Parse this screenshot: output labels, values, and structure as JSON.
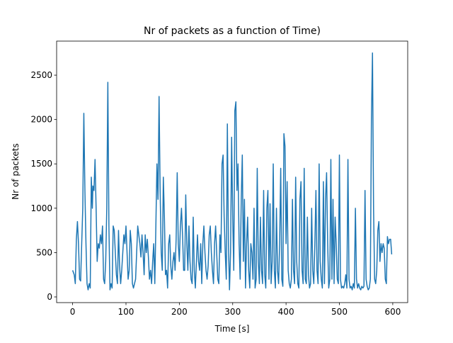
{
  "chart_data": {
    "type": "line",
    "title": "Nr of packets as a function of Time)",
    "x_label": "Time [s]",
    "y_label": "Nr of packets",
    "x": [
      0,
      3,
      5,
      7,
      9,
      11,
      13,
      15,
      17,
      19,
      21,
      23,
      25,
      27,
      29,
      31,
      33,
      35,
      37,
      38,
      40,
      42,
      44,
      46,
      48,
      50,
      52,
      54,
      56,
      58,
      60,
      62,
      64,
      66,
      68,
      70,
      72,
      74,
      76,
      78,
      80,
      82,
      84,
      86,
      88,
      90,
      92,
      94,
      96,
      98,
      100,
      102,
      104,
      106,
      108,
      110,
      112,
      114,
      116,
      118,
      120,
      122,
      124,
      126,
      128,
      130,
      132,
      134,
      136,
      138,
      140,
      142,
      144,
      146,
      148,
      150,
      152,
      154,
      156,
      158,
      160,
      162,
      164,
      166,
      168,
      170,
      172,
      174,
      176,
      178,
      180,
      182,
      184,
      186,
      188,
      190,
      192,
      194,
      196,
      198,
      200,
      202,
      204,
      206,
      208,
      210,
      212,
      214,
      216,
      218,
      220,
      222,
      224,
      226,
      228,
      230,
      232,
      234,
      236,
      238,
      240,
      242,
      244,
      246,
      248,
      250,
      252,
      254,
      256,
      258,
      260,
      262,
      264,
      266,
      268,
      270,
      272,
      274,
      276,
      278,
      280,
      282,
      284,
      286,
      288,
      290,
      292,
      294,
      296,
      298,
      300,
      302,
      304,
      306,
      308,
      310,
      312,
      314,
      316,
      318,
      320,
      322,
      324,
      326,
      328,
      330,
      332,
      334,
      336,
      338,
      340,
      342,
      344,
      346,
      348,
      350,
      352,
      354,
      356,
      358,
      360,
      362,
      364,
      366,
      368,
      370,
      372,
      374,
      376,
      378,
      380,
      382,
      384,
      386,
      388,
      390,
      392,
      394,
      396,
      398,
      400,
      402,
      404,
      406,
      408,
      410,
      412,
      414,
      416,
      418,
      420,
      422,
      424,
      426,
      428,
      430,
      432,
      434,
      436,
      438,
      440,
      442,
      444,
      446,
      448,
      450,
      452,
      454,
      456,
      458,
      460,
      462,
      464,
      466,
      468,
      470,
      472,
      474,
      476,
      478,
      480,
      482,
      484,
      486,
      488,
      490,
      492,
      494,
      496,
      498,
      500,
      502,
      504,
      506,
      508,
      510,
      512,
      514,
      516,
      518,
      520,
      522,
      524,
      526,
      528,
      530,
      532,
      534,
      536,
      538,
      540,
      542,
      544,
      546,
      548,
      550,
      552,
      554,
      556,
      558,
      560,
      562,
      564,
      566,
      568,
      570,
      572,
      574,
      576,
      578,
      580,
      582,
      584,
      586,
      588,
      590,
      592,
      594,
      596,
      598
    ],
    "series": [
      {
        "name": "packets",
        "color": "#1f77b4",
        "values": [
          300,
          250,
          150,
          650,
          850,
          600,
          200,
          180,
          600,
          1000,
          2070,
          1200,
          600,
          150,
          80,
          150,
          100,
          1350,
          1000,
          1250,
          1200,
          1550,
          1000,
          400,
          600,
          550,
          700,
          600,
          800,
          200,
          150,
          400,
          1000,
          2420,
          800,
          80,
          150,
          100,
          800,
          750,
          500,
          250,
          150,
          750,
          350,
          150,
          300,
          500,
          700,
          600,
          800,
          500,
          200,
          300,
          750,
          600,
          150,
          100,
          150,
          200,
          500,
          800,
          700,
          600,
          450,
          700,
          500,
          250,
          700,
          500,
          650,
          450,
          200,
          300,
          150,
          400,
          600,
          150,
          800,
          1500,
          1100,
          2260,
          1200,
          500,
          300,
          1350,
          900,
          250,
          300,
          100,
          600,
          700,
          350,
          200,
          400,
          500,
          300,
          650,
          1400,
          600,
          400,
          800,
          1000,
          700,
          300,
          300,
          1150,
          600,
          300,
          800,
          400,
          200,
          150,
          900,
          300,
          100,
          400,
          700,
          400,
          300,
          600,
          150,
          600,
          800,
          500,
          300,
          200,
          350,
          700,
          800,
          500,
          300,
          150,
          600,
          800,
          500,
          200,
          150,
          700,
          500,
          1500,
          1600,
          900,
          500,
          200,
          1950,
          600,
          80,
          500,
          1800,
          900,
          300,
          2100,
          2200,
          1200,
          1500,
          600,
          200,
          1100,
          1600,
          400,
          1100,
          100,
          600,
          900,
          300,
          100,
          600,
          500,
          200,
          1000,
          100,
          200,
          1450,
          400,
          150,
          900,
          300,
          150,
          1200,
          250,
          100,
          1000,
          1200,
          200,
          1050,
          150,
          400,
          1500,
          300,
          100,
          1000,
          300,
          150,
          600,
          1450,
          200,
          120,
          1840,
          1700,
          600,
          1300,
          300,
          150,
          100,
          200,
          1100,
          300,
          150,
          1350,
          400,
          150,
          100,
          1100,
          1300,
          300,
          150,
          1450,
          200,
          150,
          900,
          250,
          100,
          150,
          1000,
          300,
          150,
          600,
          1200,
          300,
          150,
          1500,
          400,
          200,
          100,
          1300,
          150,
          1100,
          1400,
          600,
          100,
          200,
          1550,
          200,
          1100,
          150,
          900,
          600,
          200,
          150,
          1600,
          200,
          100,
          120,
          100,
          150,
          250,
          100,
          1550,
          200,
          100,
          120,
          80,
          150,
          100,
          1000,
          200,
          100,
          150,
          100,
          80,
          120,
          100,
          120,
          1200,
          200,
          120,
          80,
          100,
          200,
          2000,
          2750,
          1000,
          200,
          150,
          300,
          750,
          850,
          400,
          600,
          500,
          600,
          550,
          200,
          150,
          680,
          600,
          650,
          650,
          480
        ]
      }
    ],
    "xlim": [
      -30,
      628
    ],
    "ylim": [
      -64,
      2884
    ],
    "xticks": [
      0,
      100,
      200,
      300,
      400,
      500,
      600
    ],
    "yticks": [
      0,
      500,
      1000,
      1500,
      2000,
      2500
    ],
    "grid": false
  }
}
